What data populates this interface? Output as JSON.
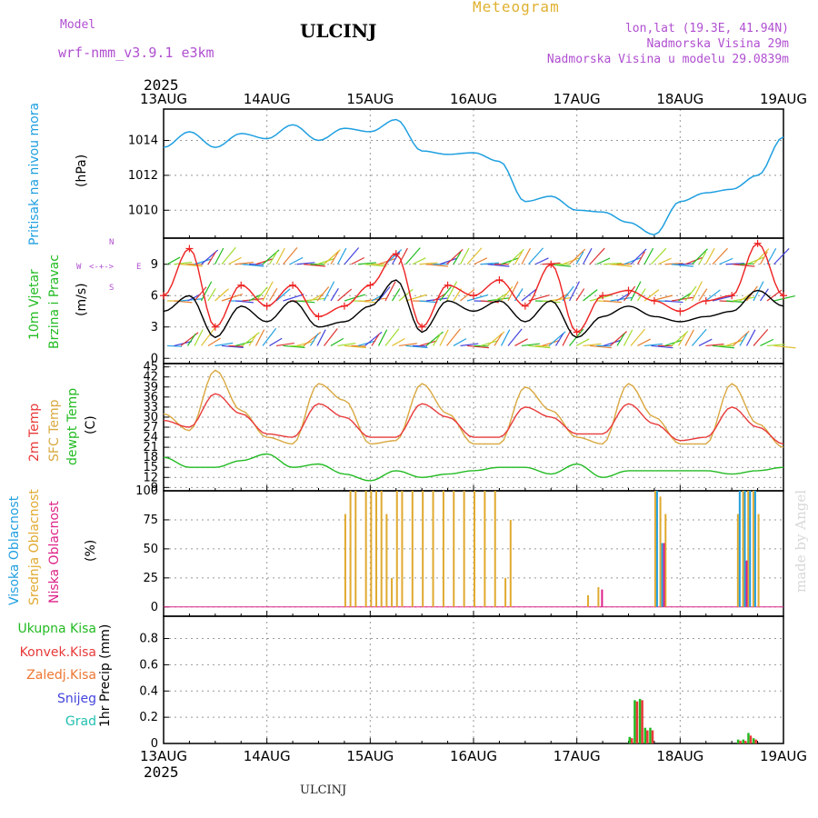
{
  "header": {
    "model_label": "Model",
    "model_name": "wrf-nmm_v3.9.1 e3km",
    "station": "ULCINJ",
    "product": "Meteogram",
    "lonlat": "lon,lat (19.3E, 41.94N)",
    "elevation": "Nadmorska Visina 29m",
    "model_elevation": "Nadmorska Visina u modelu 29.0839m",
    "year": "2025",
    "footer_station": "ULCINJ",
    "watermark": "made by Angel"
  },
  "colors": {
    "pressure": "#1e9fe0",
    "wind_speed": "#000000",
    "wind_gust": "#ee2222",
    "temp_2m": "#e83a3a",
    "temp_sfc": "#d9a840",
    "dewpoint": "#22bb22",
    "cloud_high": "#22a0e0",
    "cloud_mid": "#e0aa30",
    "cloud_low": "#dd2288",
    "precip_total": "#22bb22",
    "precip_conv": "#e83a3a",
    "snow": "#4444dd",
    "hail": "#22c0b0",
    "freezing": "#ee7733"
  },
  "chart_data": [
    {
      "type": "line",
      "id": "pressure",
      "labels": [
        "Pritisak na nivou mora",
        "(hPa)"
      ],
      "x_ticks": [
        "13AUG",
        "14AUG",
        "15AUG",
        "16AUG",
        "17AUG",
        "18AUG",
        "19AUG"
      ],
      "x": [
        0,
        0.25,
        0.5,
        0.75,
        1,
        1.25,
        1.5,
        1.75,
        2,
        2.25,
        2.5,
        2.75,
        3,
        3.25,
        3.5,
        3.75,
        4,
        4.25,
        4.5,
        4.75,
        5,
        5.25,
        5.5,
        5.75,
        6
      ],
      "series": [
        {
          "name": "MSLP",
          "values": [
            1013.6,
            1014.5,
            1013.6,
            1014.4,
            1014.1,
            1014.9,
            1014.0,
            1014.7,
            1014.5,
            1015.2,
            1013.4,
            1013.2,
            1013.3,
            1012.8,
            1010.5,
            1010.8,
            1010.0,
            1009.9,
            1009.3,
            1008.6,
            1010.5,
            1011.0,
            1011.2,
            1012.0,
            1014.2
          ]
        }
      ],
      "yticks": [
        1010,
        1012,
        1014
      ],
      "ylim": [
        1008.4,
        1015.8
      ]
    },
    {
      "type": "line",
      "id": "wind",
      "labels": [
        "10m Vjetar",
        "Brzina i Pravac",
        "(m/s)"
      ],
      "compass": {
        "n": "N",
        "s": "S",
        "e": "E",
        "w": "W"
      },
      "x": [
        0,
        0.25,
        0.5,
        0.75,
        1,
        1.25,
        1.5,
        1.75,
        2,
        2.25,
        2.5,
        2.75,
        3,
        3.25,
        3.5,
        3.75,
        4,
        4.25,
        4.5,
        4.75,
        5,
        5.25,
        5.5,
        5.75,
        6
      ],
      "series": [
        {
          "name": "speed",
          "values": [
            4.5,
            6.0,
            2.0,
            5.0,
            3.5,
            5.5,
            3.0,
            3.5,
            5.0,
            7.5,
            2.5,
            5.5,
            4.5,
            5.5,
            3.5,
            5.5,
            2.0,
            4.0,
            5.0,
            4.0,
            3.5,
            4.0,
            4.5,
            6.5,
            5.0
          ]
        },
        {
          "name": "gust",
          "values": [
            6.0,
            10.5,
            3.0,
            7.0,
            5.0,
            7.0,
            4.0,
            5.0,
            7.0,
            10.0,
            3.0,
            7.0,
            6.0,
            7.5,
            5.0,
            9.0,
            2.5,
            6.0,
            6.5,
            5.5,
            4.5,
            5.5,
            6.0,
            11.0,
            6.0
          ]
        }
      ],
      "yticks": [
        0,
        3,
        6,
        9
      ],
      "ylim": [
        -0.5,
        11.5
      ]
    },
    {
      "type": "line",
      "id": "temperature",
      "labels": [
        "2m Temp",
        "SFC Temp",
        "dewpt Temp",
        "(C)"
      ],
      "x": [
        0,
        0.25,
        0.5,
        0.75,
        1,
        1.25,
        1.5,
        1.75,
        2,
        2.25,
        2.5,
        2.75,
        3,
        3.25,
        3.5,
        3.75,
        4,
        4.25,
        4.5,
        4.75,
        5,
        5.25,
        5.5,
        5.75,
        6
      ],
      "series": [
        {
          "name": "2m",
          "values": [
            29,
            27,
            37,
            31,
            25,
            24,
            34,
            30,
            24,
            24,
            34,
            30,
            24,
            24,
            33,
            30,
            25,
            25,
            34,
            28,
            23,
            24,
            33,
            27,
            22
          ]
        },
        {
          "name": "sfc",
          "values": [
            31,
            26,
            44,
            32,
            24,
            22,
            40,
            35,
            22,
            23,
            40,
            31,
            22,
            22,
            39,
            32,
            24,
            22,
            40,
            30,
            22,
            22,
            40,
            28,
            21
          ]
        },
        {
          "name": "dewpt",
          "values": [
            18,
            15,
            15,
            17,
            19,
            15,
            16,
            13,
            11,
            14,
            12,
            13,
            14,
            15,
            15,
            13,
            16,
            12,
            14,
            14,
            14,
            14,
            13,
            14,
            15
          ]
        }
      ],
      "yticks": [
        9,
        12,
        15,
        18,
        21,
        24,
        27,
        30,
        33,
        36,
        39,
        42,
        45
      ],
      "ylim": [
        8,
        46
      ]
    },
    {
      "type": "bar",
      "id": "clouds",
      "labels": [
        "Visoka Oblacnost",
        "Srednja Oblacnost",
        "Niska Oblacnost",
        "(%)"
      ],
      "x": [
        1.75,
        1.8,
        1.85,
        1.95,
        2.0,
        2.05,
        2.1,
        2.15,
        2.2,
        2.25,
        2.3,
        2.4,
        2.5,
        2.6,
        2.7,
        2.8,
        2.9,
        3.0,
        3.1,
        3.2,
        3.3,
        3.35,
        4.1,
        4.2,
        4.75,
        4.8,
        4.85,
        5.55,
        5.6,
        5.65,
        5.7,
        5.75
      ],
      "series": [
        {
          "name": "mid",
          "values": [
            80,
            100,
            100,
            100,
            100,
            100,
            100,
            80,
            25,
            100,
            100,
            100,
            100,
            100,
            100,
            100,
            100,
            100,
            100,
            100,
            25,
            75,
            10,
            17,
            100,
            95,
            80,
            80,
            100,
            100,
            100,
            80
          ]
        },
        {
          "name": "high",
          "values": [
            0,
            0,
            0,
            0,
            0,
            0,
            0,
            0,
            0,
            0,
            0,
            0,
            0,
            0,
            0,
            0,
            0,
            0,
            0,
            0,
            0,
            0,
            0,
            0,
            100,
            55,
            0,
            100,
            100,
            100,
            100,
            0
          ]
        },
        {
          "name": "low",
          "values": [
            0,
            0,
            0,
            0,
            0,
            0,
            0,
            0,
            0,
            0,
            0,
            0,
            0,
            0,
            0,
            0,
            0,
            0,
            0,
            0,
            0,
            0,
            0,
            15,
            0,
            55,
            0,
            0,
            40,
            0,
            0,
            0
          ]
        }
      ],
      "yticks": [
        0,
        25,
        50,
        75,
        100
      ],
      "ylim": [
        -8,
        100
      ]
    },
    {
      "type": "bar",
      "id": "precip",
      "labels": [
        "1hr Precip (mm)"
      ],
      "legend": [
        "Ukupna Kisa",
        "Konvek.Kisa",
        "Zaledj.Kisa",
        "Snijeg",
        "Grad"
      ],
      "x": [
        4.5,
        4.55,
        4.6,
        4.65,
        4.7,
        5.55,
        5.6,
        5.65,
        5.7
      ],
      "series": [
        {
          "name": "total",
          "values": [
            0.05,
            0.33,
            0.34,
            0.12,
            0.12,
            0.03,
            0.03,
            0.08,
            0.04
          ]
        },
        {
          "name": "conv",
          "values": [
            0.04,
            0.32,
            0.33,
            0.1,
            0.1,
            0.02,
            0.02,
            0.06,
            0.03
          ]
        }
      ],
      "yticks": [
        0,
        0.2,
        0.4,
        0.6,
        0.8
      ],
      "ylim": [
        0,
        0.97
      ]
    }
  ]
}
